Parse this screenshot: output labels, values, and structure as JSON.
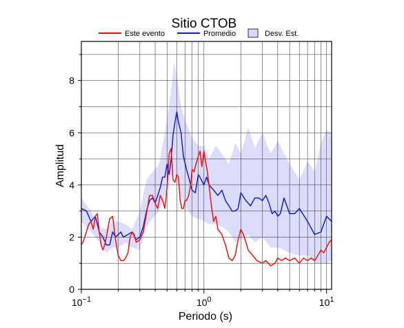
{
  "chart_data": {
    "type": "line",
    "title": "Sitio CTOB",
    "xlabel": "Periodo (s)",
    "ylabel": "Amplitud",
    "x_scale": "log",
    "xlim": [
      0.1,
      11
    ],
    "ylim": [
      0,
      9.5
    ],
    "x_ticks": [
      {
        "value": 0.1,
        "base": "10",
        "exp": "−1"
      },
      {
        "value": 1,
        "base": "10",
        "exp": "0"
      },
      {
        "value": 10,
        "base": "10",
        "exp": "1"
      }
    ],
    "y_ticks": [
      0,
      2,
      4,
      6,
      8
    ],
    "grid": true,
    "legend_position": "top",
    "legend": [
      {
        "label": "Este evento",
        "kind": "line",
        "color": "#ee1111"
      },
      {
        "label": "Promedio",
        "kind": "line",
        "color": "#1a1ad0"
      },
      {
        "label": "Desv. Est.",
        "kind": "patch",
        "color": "#d8d8fa"
      }
    ],
    "band": {
      "name": "Desv. Est.",
      "color": "#dcdcfb",
      "x": [
        0.1,
        0.12,
        0.14,
        0.16,
        0.18,
        0.2,
        0.23,
        0.26,
        0.3,
        0.34,
        0.38,
        0.43,
        0.48,
        0.53,
        0.57,
        0.6,
        0.65,
        0.7,
        0.8,
        0.9,
        1.0,
        1.1,
        1.25,
        1.4,
        1.6,
        1.8,
        2.0,
        2.3,
        2.6,
        3.0,
        3.5,
        4.0,
        4.5,
        5.0,
        6.0,
        7.0,
        8.0,
        9.0,
        10.0,
        11.0
      ],
      "upper": [
        3.5,
        3.0,
        2.4,
        2.3,
        2.6,
        2.6,
        2.5,
        2.3,
        3.0,
        4.2,
        4.5,
        4.8,
        6.0,
        7.3,
        8.7,
        8.2,
        7.0,
        6.5,
        5.8,
        5.5,
        5.5,
        5.0,
        5.5,
        5.2,
        4.8,
        5.6,
        5.2,
        6.2,
        5.4,
        6.0,
        5.2,
        5.7,
        5.2,
        4.8,
        4.2,
        4.9,
        4.5,
        5.6,
        6.1,
        6.0
      ],
      "lower": [
        2.6,
        2.2,
        1.8,
        1.4,
        1.6,
        1.6,
        1.8,
        1.6,
        1.5,
        2.4,
        2.7,
        3.0,
        3.6,
        4.2,
        4.5,
        4.2,
        3.6,
        3.2,
        2.8,
        2.7,
        2.6,
        2.5,
        2.5,
        2.4,
        2.2,
        1.8,
        1.9,
        2.1,
        1.8,
        2.0,
        1.6,
        1.6,
        1.5,
        1.4,
        1.3,
        1.3,
        1.0,
        1.0,
        1.0,
        1.1
      ]
    },
    "series": [
      {
        "name": "Promedio",
        "color": "#1a1ad0",
        "x": [
          0.1,
          0.11,
          0.12,
          0.13,
          0.14,
          0.15,
          0.16,
          0.17,
          0.18,
          0.19,
          0.2,
          0.21,
          0.22,
          0.24,
          0.26,
          0.28,
          0.3,
          0.32,
          0.34,
          0.36,
          0.38,
          0.4,
          0.42,
          0.44,
          0.46,
          0.48,
          0.5,
          0.52,
          0.54,
          0.56,
          0.58,
          0.6,
          0.62,
          0.65,
          0.68,
          0.72,
          0.76,
          0.8,
          0.85,
          0.9,
          0.95,
          1.0,
          1.05,
          1.1,
          1.15,
          1.2,
          1.3,
          1.4,
          1.5,
          1.6,
          1.7,
          1.8,
          1.9,
          2.0,
          2.2,
          2.4,
          2.6,
          2.8,
          3.0,
          3.2,
          3.4,
          3.6,
          3.8,
          4.0,
          4.2,
          4.5,
          5.0,
          5.5,
          6.0,
          7.0,
          8.0,
          9.0,
          10.0,
          11.0
        ],
        "y": [
          3.1,
          3.0,
          2.6,
          2.8,
          2.2,
          2.0,
          1.7,
          1.7,
          2.2,
          2.0,
          2.1,
          2.2,
          2.0,
          2.1,
          2.2,
          1.9,
          2.0,
          2.4,
          3.0,
          3.4,
          3.5,
          3.3,
          3.6,
          3.9,
          4.3,
          4.3,
          4.8,
          4.4,
          5.0,
          5.9,
          6.4,
          6.8,
          6.4,
          6.0,
          5.1,
          4.6,
          4.2,
          3.8,
          3.7,
          4.4,
          4.2,
          4.0,
          4.3,
          4.0,
          3.9,
          3.8,
          3.6,
          3.8,
          3.4,
          3.2,
          3.0,
          3.0,
          3.1,
          3.7,
          3.4,
          3.2,
          3.5,
          3.5,
          3.4,
          3.6,
          3.3,
          2.9,
          3.0,
          2.8,
          2.9,
          3.5,
          2.9,
          2.9,
          3.1,
          2.6,
          2.1,
          2.2,
          2.8,
          2.6
        ]
      },
      {
        "name": "Este evento",
        "color": "#ee1111",
        "x": [
          0.1,
          0.105,
          0.11,
          0.115,
          0.12,
          0.125,
          0.13,
          0.135,
          0.14,
          0.145,
          0.15,
          0.155,
          0.16,
          0.17,
          0.18,
          0.19,
          0.2,
          0.21,
          0.22,
          0.23,
          0.24,
          0.25,
          0.26,
          0.27,
          0.28,
          0.3,
          0.32,
          0.34,
          0.36,
          0.38,
          0.4,
          0.42,
          0.44,
          0.46,
          0.48,
          0.5,
          0.52,
          0.54,
          0.56,
          0.58,
          0.6,
          0.62,
          0.64,
          0.66,
          0.68,
          0.7,
          0.72,
          0.75,
          0.78,
          0.8,
          0.83,
          0.86,
          0.9,
          0.93,
          0.96,
          1.0,
          1.03,
          1.06,
          1.1,
          1.15,
          1.2,
          1.25,
          1.3,
          1.4,
          1.5,
          1.6,
          1.7,
          1.8,
          1.9,
          2.0,
          2.1,
          2.2,
          2.3,
          2.5,
          2.7,
          3.0,
          3.2,
          3.5,
          3.8,
          4.0,
          4.3,
          4.6,
          5.0,
          5.5,
          6.0,
          6.5,
          7.0,
          7.5,
          8.0,
          8.5,
          9.0,
          9.5,
          10.0,
          10.5,
          11.0
        ],
        "y": [
          1.7,
          1.9,
          2.2,
          2.5,
          2.6,
          2.3,
          2.8,
          2.9,
          2.2,
          1.7,
          1.5,
          1.7,
          2.0,
          2.7,
          2.8,
          1.9,
          1.3,
          1.1,
          1.1,
          1.2,
          1.4,
          2.0,
          2.2,
          2.1,
          1.8,
          1.9,
          2.2,
          2.9,
          3.6,
          3.6,
          3.3,
          3.1,
          3.6,
          3.4,
          3.1,
          3.9,
          5.2,
          5.4,
          4.2,
          4.1,
          4.4,
          4.3,
          3.4,
          3.1,
          3.1,
          3.4,
          3.4,
          3.6,
          4.0,
          4.6,
          4.5,
          4.8,
          5.1,
          5.3,
          4.7,
          5.3,
          4.9,
          4.6,
          4.0,
          3.2,
          2.6,
          2.8,
          2.3,
          2.1,
          1.7,
          1.2,
          1.1,
          1.3,
          1.9,
          2.3,
          2.1,
          1.8,
          1.5,
          1.3,
          1.1,
          1.0,
          1.1,
          0.9,
          1.0,
          1.2,
          1.1,
          1.2,
          1.1,
          1.2,
          1.0,
          1.2,
          1.1,
          1.2,
          1.1,
          1.3,
          1.5,
          1.4,
          1.6,
          1.8,
          1.9
        ]
      }
    ]
  }
}
